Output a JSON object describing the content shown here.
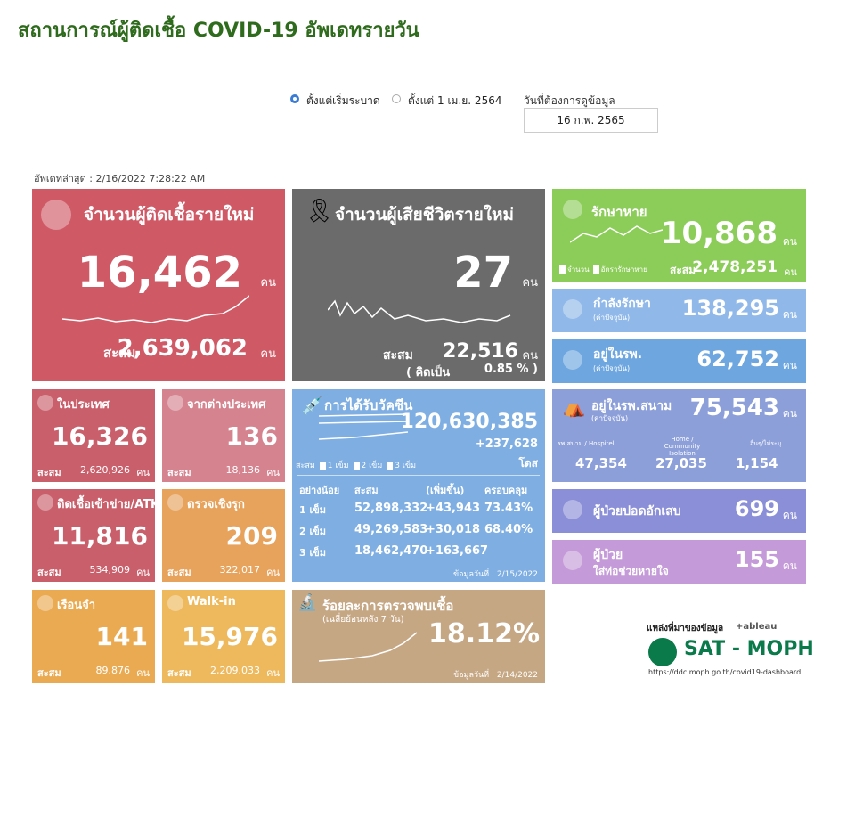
{
  "header": {
    "title": "สถานการณ์ผู้ติดเชื้อ COVID-19 อัพเดทรายวัน"
  },
  "filters": {
    "options": [
      "ตั้งแต่เริ่มระบาด",
      "ตั้งแต่ 1 เม.ย. 2564"
    ],
    "selected": 0,
    "date_label": "วันที่ต้องการดูข้อมูล",
    "date_value": "16 ก.พ. 2565"
  },
  "updated": "อัพเดทล่าสุด : 2/16/2022 7:28:22 AM",
  "unit": "คน",
  "cumulative_label": "สะสม",
  "cards": {
    "new_cases": {
      "title": "จำนวนผู้ติดเชื้อรายใหม่",
      "value": "16,462",
      "cumulative": "2,639,062"
    },
    "deaths": {
      "title": "จำนวนผู้เสียชีวิตรายใหม่",
      "value": "27",
      "cumulative": "22,516",
      "rate_label": "( คิดเป็น",
      "rate": "0.85 % )"
    },
    "domestic": {
      "title": "ในประเทศ",
      "value": "16,326",
      "cumulative": "2,620,926"
    },
    "imported": {
      "title": "จากต่างประเทศ",
      "value": "136",
      "cumulative": "18,136"
    },
    "atk": {
      "title": "ติดเชื้อเข้าข่าย/ATK",
      "value": "11,816",
      "cumulative": "534,909"
    },
    "active_search": {
      "title": "ตรวจเชิงรุก",
      "value": "209",
      "cumulative": "322,017"
    },
    "prison": {
      "title": "เรือนจำ",
      "value": "141",
      "cumulative": "89,876"
    },
    "walk_in": {
      "title": "Walk-in",
      "value": "15,976",
      "cumulative": "2,209,033"
    },
    "vaccine": {
      "title": "การได้รับวัคซีน",
      "total": "120,630,385",
      "increase": "+237,628",
      "unit": "โดส",
      "legend": [
        "สะสม",
        "1 เข็ม",
        "2 เข็ม",
        "3 เข็ม"
      ],
      "header": [
        "อย่างน้อย",
        "สะสม",
        "(เพิ่มขึ้น)",
        "ครอบคลุม"
      ],
      "rows": [
        [
          "1 เข็ม",
          "52,898,332",
          "+43,943",
          "73.43%"
        ],
        [
          "2 เข็ม",
          "49,269,583",
          "+30,018",
          "68.40%"
        ],
        [
          "3 เข็ม",
          "18,462,470",
          "+163,667"
        ]
      ],
      "footnote": "ข้อมูลวันที่ : 2/15/2022"
    },
    "positivity": {
      "title": "ร้อยละการตรวจพบเชื้อ",
      "subtitle": "(เฉลี่ยย้อนหลัง 7 วัน)",
      "value": "18.12%",
      "footnote": "ข้อมูลวันที่ : 2/14/2022"
    },
    "recovered": {
      "title": "รักษาหาย",
      "value": "10,868",
      "legend": [
        "จำนวน",
        "อัตรารักษาหาย"
      ],
      "cumulative": "2,478,251"
    },
    "treating": {
      "title": "กำลังรักษา",
      "subtitle": "(ค่าปัจจุบัน)",
      "value": "138,295"
    },
    "hospital": {
      "title": "อยู่ในรพ.",
      "subtitle": "(ค่าปัจจุบัน)",
      "value": "62,752"
    },
    "field_hospital": {
      "title": "อยู่ในรพ.สนาม",
      "subtitle": "(ค่าปัจจุบัน)",
      "value": "75,543",
      "breakdown": [
        {
          "label": "รพ.สนาม / Hospitel",
          "value": "47,354"
        },
        {
          "label": "Home / Community Isolation",
          "value": "27,035"
        },
        {
          "label": "อื่นๆ/ไม่ระบุ",
          "value": "1,154"
        }
      ]
    },
    "pneumonia": {
      "title": "ผู้ป่วยปอดอักเสบ",
      "value": "699"
    },
    "ventilator": {
      "title": "ผู้ป่วย",
      "subtitle": "ใส่ท่อช่วยหายใจ",
      "value": "155"
    }
  },
  "source": {
    "label": "แหล่งที่มาของข้อมูล",
    "tableau": "+ableau",
    "brand": "SAT - MOPH",
    "url": "https://ddc.moph.go.th/covid19-dashboard"
  }
}
